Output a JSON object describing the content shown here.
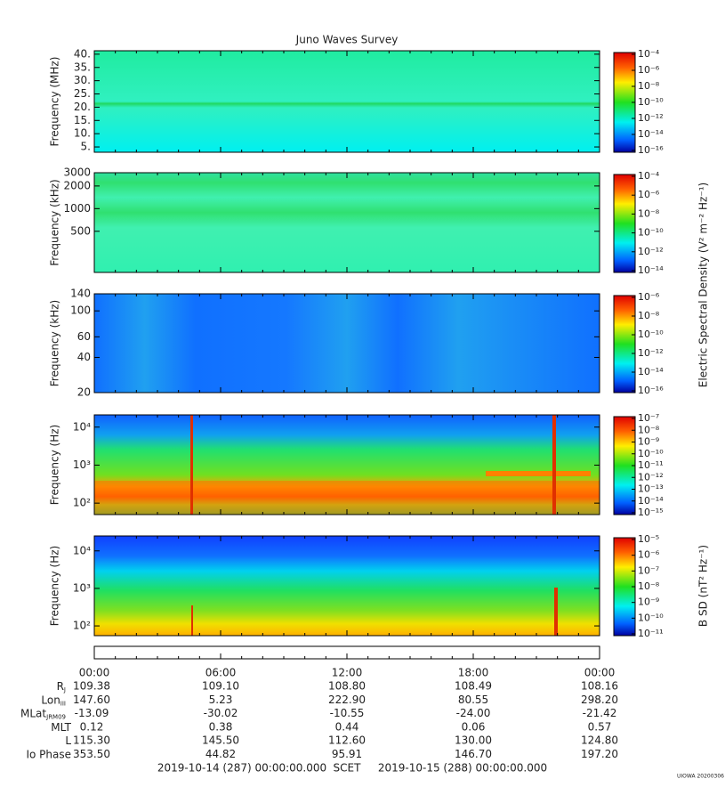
{
  "title": "Juno Waves Survey",
  "panels": [
    {
      "ylabel": "Frequency (MHz)",
      "scale": "linear",
      "ylim": [
        3,
        41.3
      ],
      "yticks": [
        {
          "value": 40,
          "label": "40."
        },
        {
          "value": 35,
          "label": "35."
        },
        {
          "value": 30,
          "label": "30."
        },
        {
          "value": 25,
          "label": "25."
        },
        {
          "value": 20,
          "label": "20."
        },
        {
          "value": 15,
          "label": "15."
        },
        {
          "value": 10,
          "label": "10."
        },
        {
          "value": 5,
          "label": "5."
        }
      ],
      "cbar_ticks": [
        "10⁻⁴",
        "10⁻⁶",
        "10⁻⁸",
        "10⁻¹⁰",
        "10⁻¹²",
        "10⁻¹⁴",
        "10⁻¹⁶"
      ]
    },
    {
      "ylabel": "Frequency (kHz)",
      "scale": "log",
      "ylim": [
        142,
        3000
      ],
      "yticks": [
        3000,
        2000,
        1000,
        500
      ],
      "cbar_ticks": [
        "10⁻⁴",
        "10⁻⁶",
        "10⁻⁸",
        "10⁻¹⁰",
        "10⁻¹²",
        "10⁻¹⁴"
      ]
    },
    {
      "ylabel": "Frequency (kHz)",
      "scale": "log",
      "ylim": [
        20,
        140
      ],
      "yticks": [
        140,
        100,
        60,
        40,
        20
      ],
      "cbar_ticks": [
        "10⁻⁶",
        "10⁻⁸",
        "10⁻¹⁰",
        "10⁻¹²",
        "10⁻¹⁴",
        "10⁻¹⁶"
      ]
    },
    {
      "ylabel": "Frequency (Hz)",
      "scale": "log",
      "ylim": [
        50,
        21000
      ],
      "yticks": [
        {
          "value": 10000,
          "label": "10⁴"
        },
        {
          "value": 1000,
          "label": "10³"
        },
        {
          "value": 100,
          "label": "10²"
        }
      ],
      "cbar_ticks": [
        "10⁻⁷",
        "10⁻⁸",
        "10⁻⁹",
        "10⁻¹⁰",
        "10⁻¹¹",
        "10⁻¹²",
        "10⁻¹³",
        "10⁻¹⁴",
        "10⁻¹⁵"
      ]
    },
    {
      "ylabel": "Frequency (Hz)",
      "scale": "log",
      "ylim": [
        55,
        25000
      ],
      "yticks": [
        {
          "value": 10000,
          "label": "10⁴"
        },
        {
          "value": 1000,
          "label": "10³"
        },
        {
          "value": 100,
          "label": "10²"
        }
      ],
      "cbar_ticks": [
        "10⁻⁵",
        "10⁻⁶",
        "10⁻⁷",
        "10⁻⁸",
        "10⁻⁹",
        "10⁻¹⁰",
        "10⁻¹¹"
      ]
    }
  ],
  "e_label": "Electric Spectral Density (V² m⁻² Hz⁻¹)",
  "b_label": "B SD (nT² Hz⁻¹)",
  "xticks": [
    "00:00",
    "06:00",
    "12:00",
    "18:00",
    "00:00"
  ],
  "ephemeris": [
    {
      "label": "R",
      "sub": "J",
      "values": [
        "109.38",
        "109.10",
        "108.80",
        "108.49",
        "108.16"
      ]
    },
    {
      "label": "Lon",
      "sub": "III",
      "values": [
        "147.60",
        "5.23",
        "222.90",
        "80.55",
        "298.20"
      ]
    },
    {
      "label": "MLat",
      "sub": "JRM09",
      "values": [
        "-13.09",
        "-30.02",
        "-10.55",
        "-24.00",
        "-21.42"
      ]
    },
    {
      "label": "MLT",
      "values": [
        "0.12",
        "0.38",
        "0.44",
        "0.06",
        "0.57"
      ]
    },
    {
      "label": "L",
      "values": [
        "115.30",
        "145.50",
        "112.60",
        "130.00",
        "124.80"
      ]
    },
    {
      "label": "Io Phase",
      "values": [
        "353.50",
        "44.82",
        "95.91",
        "146.70",
        "197.20"
      ]
    }
  ],
  "start": "2019-10-14 (287) 00:00:00.000",
  "scet": "SCET",
  "end": "2019-10-15 (288) 00:00:00.000",
  "stamp": "UIOWA 20200306"
}
